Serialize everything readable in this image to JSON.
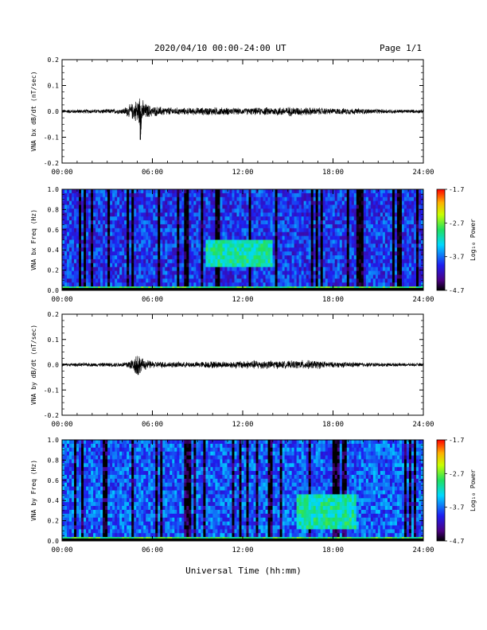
{
  "header": {
    "title": "2020/04/10  00:00-24:00 UT",
    "page": "Page 1/1"
  },
  "x_axis": {
    "range": [
      0,
      24
    ],
    "ticks": [
      "00:00",
      "06:00",
      "12:00",
      "18:00",
      "24:00"
    ],
    "label": "Universal Time (hh:mm)"
  },
  "colorbar": {
    "ticks": [
      "-1.7",
      "-2.7",
      "-3.7",
      "-4.7"
    ],
    "label": "Log₁₀ Power",
    "range": [
      -4.7,
      -1.7
    ]
  },
  "chart_data": [
    {
      "type": "line",
      "ylabel": "VNA bx dB/dt (nT/sec)",
      "ylim": [
        -0.2,
        0.2
      ],
      "yticks": [
        "0.2",
        "0.1",
        "0.0",
        "-0.1",
        "-0.2"
      ],
      "xlim": [
        0,
        24
      ],
      "series": [
        {
          "x": [
            0,
            1,
            2,
            3,
            4,
            4.8,
            5.0,
            5.1,
            5.2,
            5.4,
            5.7,
            6.0,
            7,
            8,
            9,
            10,
            11,
            12,
            13,
            14,
            15,
            16,
            17,
            18,
            19,
            20,
            21,
            22,
            23,
            24
          ],
          "envelope": [
            0.008,
            0.009,
            0.009,
            0.01,
            0.012,
            0.04,
            0.06,
            0.045,
            0.11,
            0.04,
            0.03,
            0.022,
            0.018,
            0.015,
            0.016,
            0.018,
            0.016,
            0.014,
            0.016,
            0.018,
            0.02,
            0.018,
            0.016,
            0.013,
            0.014,
            0.012,
            0.01,
            0.009,
            0.008,
            0.008
          ],
          "min_spike": {
            "x": 5.2,
            "y": -0.11
          }
        }
      ]
    },
    {
      "type": "heatmap",
      "ylabel": "VNA bx Freq (Hz)",
      "ylim": [
        0.0,
        1.0
      ],
      "yticks": [
        "1.0",
        "0.8",
        "0.6",
        "0.4",
        "0.2",
        "0.0"
      ],
      "xlim": [
        0,
        24
      ],
      "zlim": [
        -4.7,
        -1.7
      ],
      "features": [
        {
          "t": [
            9.5,
            14.0
          ],
          "f": [
            0.25,
            0.5
          ],
          "log_power": -3.1
        },
        {
          "t": [
            0,
            24
          ],
          "f": [
            0.0,
            0.03
          ],
          "log_power": -2.9
        }
      ]
    },
    {
      "type": "line",
      "ylabel": "VNA by dB/dt (nT/sec)",
      "ylim": [
        -0.2,
        0.2
      ],
      "yticks": [
        "0.2",
        "0.1",
        "0.0",
        "-0.1",
        "-0.2"
      ],
      "xlim": [
        0,
        24
      ],
      "series": [
        {
          "x": [
            0,
            1,
            2,
            3,
            4,
            4.8,
            5.0,
            5.1,
            5.2,
            5.4,
            5.7,
            6.0,
            7,
            8,
            9,
            10,
            11,
            12,
            13,
            14,
            15,
            16,
            17,
            18,
            19,
            20,
            21,
            22,
            23,
            24
          ],
          "envelope": [
            0.007,
            0.008,
            0.008,
            0.009,
            0.01,
            0.03,
            0.07,
            0.05,
            0.035,
            0.025,
            0.02,
            0.015,
            0.014,
            0.012,
            0.013,
            0.016,
            0.014,
            0.018,
            0.02,
            0.018,
            0.016,
            0.02,
            0.018,
            0.012,
            0.012,
            0.01,
            0.009,
            0.008,
            0.007,
            0.007
          ],
          "min_spike": {
            "x": 5.05,
            "y": -0.04
          }
        }
      ]
    },
    {
      "type": "heatmap",
      "ylabel": "VNA by Freq (Hz)",
      "ylim": [
        0.0,
        1.0
      ],
      "yticks": [
        "1.0",
        "0.8",
        "0.6",
        "0.4",
        "0.2",
        "0.0"
      ],
      "xlim": [
        0,
        24
      ],
      "zlim": [
        -4.7,
        -1.7
      ],
      "features": [
        {
          "t": [
            15.5,
            19.5
          ],
          "f": [
            0.1,
            0.45
          ],
          "log_power": -3.1
        },
        {
          "t": [
            0,
            24
          ],
          "f": [
            0.0,
            0.03
          ],
          "log_power": -2.9
        }
      ]
    }
  ]
}
